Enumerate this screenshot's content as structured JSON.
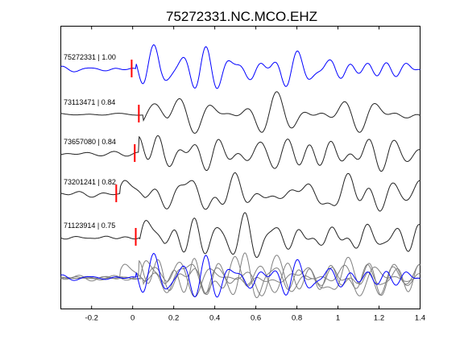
{
  "chart_data": {
    "type": "line",
    "title": "75272331.NC.MCO.EHZ",
    "xlabel": "",
    "ylabel": "",
    "xlim": [
      -0.35,
      1.4
    ],
    "xticks": [
      -0.2,
      0,
      0.2,
      0.4,
      0.6,
      0.8,
      1,
      1.2,
      1.4
    ],
    "xtick_labels": [
      "-0.2",
      "0",
      "0.2",
      "0.4",
      "0.6",
      "0.8",
      "1",
      "1.2",
      "1.4"
    ],
    "grid": false,
    "legend": false,
    "traces": [
      {
        "label": "75272331 | 1.00",
        "color": "#0000ff",
        "pick_time": -0.005
      },
      {
        "label": "73113471 | 0.84",
        "color": "#222222",
        "pick_time": 0.03
      },
      {
        "label": "73657080 | 0.84",
        "color": "#222222",
        "pick_time": 0.01
      },
      {
        "label": "73201241 | 0.82",
        "color": "#222222",
        "pick_time": -0.08
      },
      {
        "label": "71123914 | 0.75",
        "color": "#222222",
        "pick_time": 0.015
      }
    ],
    "overlay": {
      "main_color": "#0000ff",
      "other_color": "#808080"
    },
    "pick_color": "#ff0000"
  }
}
